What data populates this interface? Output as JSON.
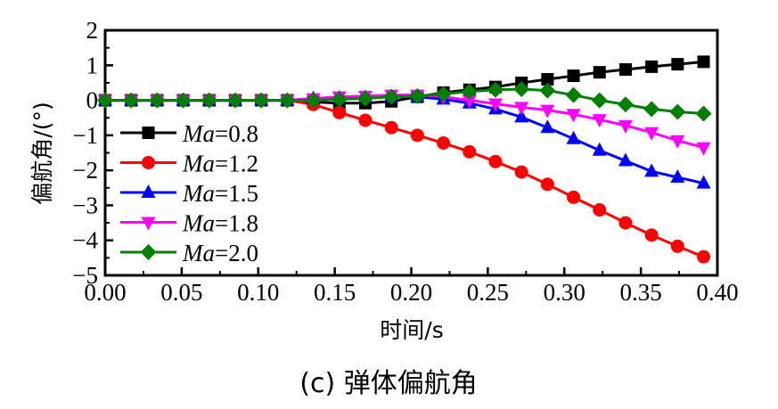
{
  "chart_data": {
    "type": "line",
    "title": "",
    "caption": "(c) 弹体偏航角",
    "xlabel": "时间/s",
    "ylabel": "偏航角/(°)",
    "xlim": [
      0.0,
      0.4
    ],
    "ylim": [
      -5,
      2
    ],
    "xticks": [
      "0.00",
      "0.05",
      "0.10",
      "0.15",
      "0.20",
      "0.25",
      "0.30",
      "0.35",
      "0.40"
    ],
    "xtick_values": [
      0.0,
      0.05,
      0.1,
      0.15,
      0.2,
      0.25,
      0.3,
      0.35,
      0.4
    ],
    "yticks": [
      "2",
      "1",
      "0",
      "−1",
      "−2",
      "−3",
      "−4",
      "−5"
    ],
    "ytick_values": [
      2,
      1,
      0,
      -1,
      -2,
      -3,
      -4,
      -5
    ],
    "grid": false,
    "legend_position": "left",
    "x": [
      0.0,
      0.017,
      0.034,
      0.051,
      0.068,
      0.085,
      0.102,
      0.119,
      0.136,
      0.153,
      0.17,
      0.187,
      0.204,
      0.221,
      0.238,
      0.255,
      0.272,
      0.289,
      0.306,
      0.323,
      0.34,
      0.357,
      0.374,
      0.391
    ],
    "series": [
      {
        "name_prefix": "Ma",
        "name_suffix": "=0.8",
        "color": "#000000",
        "marker": "square",
        "values": [
          0,
          0,
          0,
          0,
          0,
          0,
          0,
          0,
          -0.05,
          -0.08,
          -0.08,
          -0.03,
          0.1,
          0.22,
          0.3,
          0.38,
          0.5,
          0.6,
          0.7,
          0.8,
          0.88,
          0.96,
          1.03,
          1.1
        ]
      },
      {
        "name_prefix": "Ma",
        "name_suffix": "=1.2",
        "color": "#ff0000",
        "marker": "circle",
        "values": [
          0,
          0,
          0,
          0,
          0,
          0,
          0,
          0,
          -0.12,
          -0.35,
          -0.57,
          -0.78,
          -1.0,
          -1.22,
          -1.47,
          -1.75,
          -2.05,
          -2.4,
          -2.77,
          -3.13,
          -3.5,
          -3.85,
          -4.17,
          -4.47
        ]
      },
      {
        "name_prefix": "Ma",
        "name_suffix": "=1.5",
        "color": "#0000ff",
        "marker": "triangle-up",
        "values": [
          0,
          0,
          0,
          0,
          0,
          0,
          0,
          0,
          0.05,
          0.07,
          0.08,
          0.1,
          0.1,
          0.03,
          -0.08,
          -0.25,
          -0.48,
          -0.78,
          -1.1,
          -1.43,
          -1.73,
          -2.03,
          -2.2,
          -2.37
        ]
      },
      {
        "name_prefix": "Ma",
        "name_suffix": "=1.8",
        "color": "#ff00ff",
        "marker": "triangle-down",
        "values": [
          0,
          0,
          0,
          0,
          0,
          0,
          0,
          0,
          0.05,
          0.1,
          0.12,
          0.15,
          0.15,
          0.1,
          0.0,
          -0.1,
          -0.2,
          -0.28,
          -0.4,
          -0.55,
          -0.72,
          -0.92,
          -1.15,
          -1.35
        ]
      },
      {
        "name_prefix": "Ma",
        "name_suffix": "=2.0",
        "color": "#008000",
        "marker": "diamond",
        "values": [
          0,
          0,
          0,
          0,
          0,
          0,
          0,
          0,
          0,
          0.03,
          0.05,
          0.1,
          0.12,
          0.18,
          0.25,
          0.3,
          0.32,
          0.28,
          0.15,
          0.0,
          -0.12,
          -0.25,
          -0.33,
          -0.38
        ]
      }
    ]
  }
}
